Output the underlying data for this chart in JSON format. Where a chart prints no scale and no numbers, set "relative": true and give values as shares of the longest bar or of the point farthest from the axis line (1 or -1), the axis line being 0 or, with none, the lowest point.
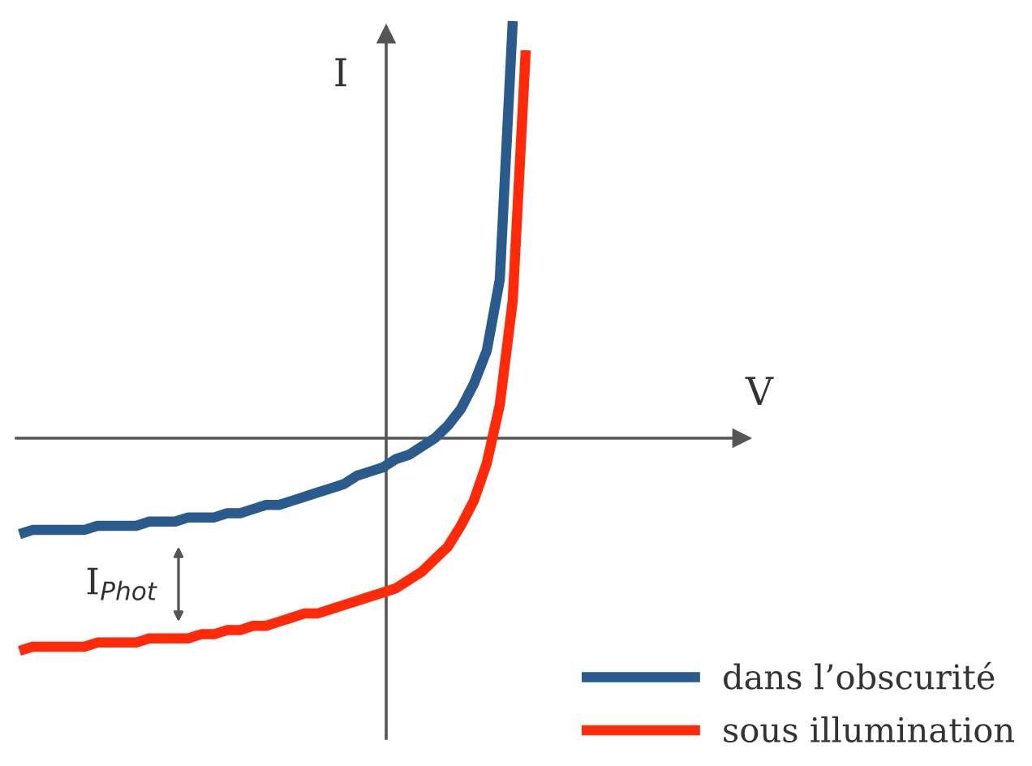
{
  "chart_data": {
    "type": "line",
    "relative": true,
    "ylabel": "I",
    "legend": "bottom right",
    "annotations": [
      "I$_{Phot}$",
      "V"
    ],
    "categories": [
      null,
      null,
      null,
      null,
      null,
      null,
      null,
      null,
      null,
      null,
      null,
      null,
      null,
      null,
      null,
      null,
      null,
      null,
      null,
      null,
      null,
      null,
      null,
      null,
      null,
      null,
      null,
      null,
      null,
      null,
      null,
      null,
      null,
      null,
      null,
      null,
      null,
      null,
      null,
      null
    ],
    "series": [
      {
        "name": "dans l’obscurité",
        "color": "#2a5b8c",
        "values": [
          -0.23,
          -0.22,
          -0.22,
          -0.22,
          -0.22,
          -0.22,
          -0.21,
          -0.21,
          -0.21,
          -0.21,
          -0.2,
          -0.2,
          -0.2,
          -0.19,
          -0.19,
          -0.19,
          -0.18,
          -0.18,
          -0.17,
          -0.16,
          -0.16,
          -0.15,
          -0.14,
          -0.13,
          -0.12,
          -0.11,
          -0.09,
          -0.08,
          -0.07,
          -0.05,
          -0.04,
          -0.02,
          0.0,
          0.03,
          0.07,
          0.13,
          0.21,
          0.38,
          1.0,
          null
        ]
      },
      {
        "name": "sous illumination",
        "color": "#ff2a0a",
        "values": [
          -0.51,
          -0.5,
          -0.5,
          -0.5,
          -0.5,
          -0.5,
          -0.49,
          -0.49,
          -0.49,
          -0.49,
          -0.48,
          -0.48,
          -0.48,
          -0.48,
          -0.47,
          -0.47,
          -0.46,
          -0.46,
          -0.45,
          -0.45,
          -0.44,
          -0.43,
          -0.42,
          -0.42,
          -0.41,
          -0.4,
          -0.39,
          -0.38,
          -0.37,
          -0.36,
          -0.34,
          -0.32,
          -0.29,
          -0.26,
          -0.21,
          -0.15,
          -0.06,
          0.08,
          0.33,
          0.93
        ]
      }
    ]
  }
}
